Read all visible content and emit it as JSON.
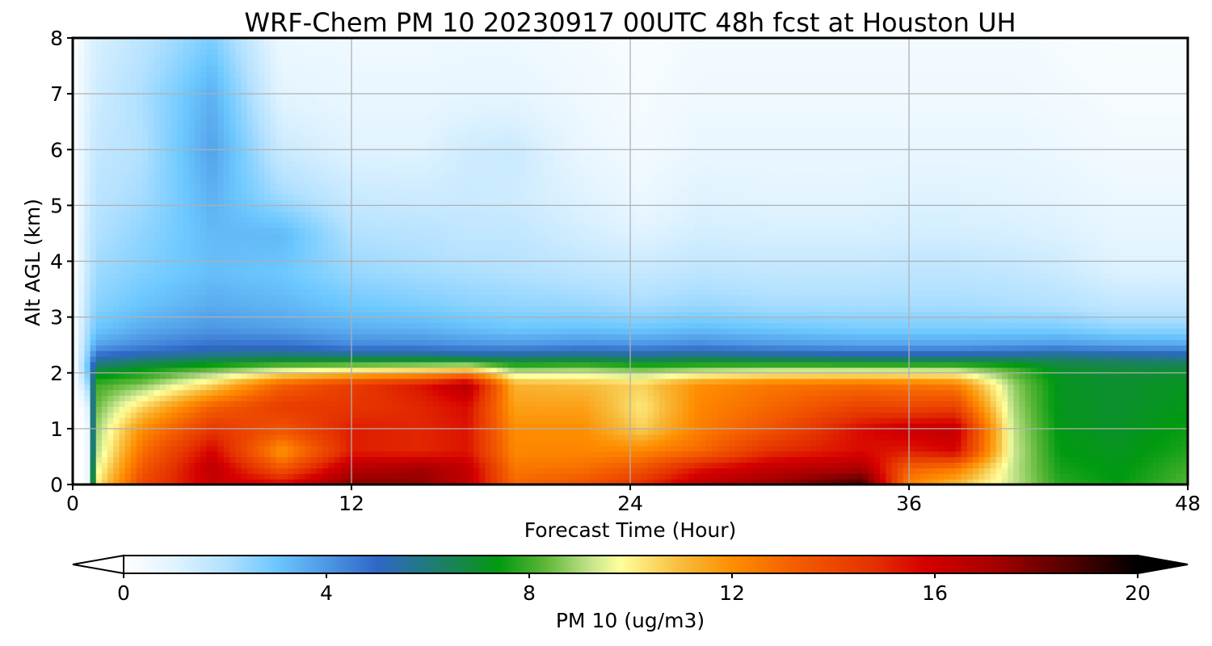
{
  "chart_data": {
    "type": "heatmap",
    "title": "WRF-Chem PM 10  20230917 00UTC 48h fcst at Houston UH",
    "xlabel": "Forecast Time (Hour)",
    "ylabel": "Alt AGL (km)",
    "xlim": [
      0,
      48
    ],
    "ylim": [
      0,
      8
    ],
    "xticks": [
      0,
      12,
      24,
      36,
      48
    ],
    "yticks": [
      0,
      1,
      2,
      3,
      4,
      5,
      6,
      7,
      8
    ],
    "grid": true,
    "z_variable": "PM 10  (ug/m3)",
    "colorbar": {
      "label": "PM 10  (ug/m3)",
      "orientation": "horizontal",
      "placement": "bottom",
      "range": [
        0,
        20
      ],
      "ticks": [
        0,
        4,
        8,
        12,
        16,
        20
      ],
      "extend": "both",
      "levels": [
        {
          "value": 0,
          "color": "#ffffff"
        },
        {
          "value": 1,
          "color": "#e0f3ff"
        },
        {
          "value": 2,
          "color": "#b3e1ff"
        },
        {
          "value": 3,
          "color": "#6cc8ff"
        },
        {
          "value": 5,
          "color": "#2f67c8"
        },
        {
          "value": 6.8,
          "color": "#138a3e"
        },
        {
          "value": 7.4,
          "color": "#009a10"
        },
        {
          "value": 8.3,
          "color": "#5bb637"
        },
        {
          "value": 9.2,
          "color": "#c4e38c"
        },
        {
          "value": 9.8,
          "color": "#ffff9c"
        },
        {
          "value": 11,
          "color": "#f7bb3a"
        },
        {
          "value": 12,
          "color": "#ff8e00"
        },
        {
          "value": 13.2,
          "color": "#f45f00"
        },
        {
          "value": 14.8,
          "color": "#e43000"
        },
        {
          "value": 15.8,
          "color": "#d60000"
        },
        {
          "value": 17.2,
          "color": "#a50000"
        },
        {
          "value": 18.8,
          "color": "#4b0000"
        },
        {
          "value": 20,
          "color": "#000000"
        }
      ]
    },
    "heights_km": [
      0,
      0.3,
      0.6,
      1.0,
      1.4,
      1.8,
      2.1,
      2.3,
      2.5,
      2.8,
      3.2,
      3.8,
      4.5,
      5.2,
      6.0,
      7.0,
      8.0
    ],
    "profiles": [
      {
        "hour": 0,
        "values": [
          0,
          0,
          0,
          0,
          0,
          0,
          0,
          0,
          0,
          0,
          0,
          0,
          0,
          0,
          0,
          0,
          0
        ]
      },
      {
        "hour": 0.6,
        "values": [
          0,
          0,
          0,
          0,
          0.5,
          1.8,
          2.8,
          2.5,
          2.2,
          2.0,
          1.8,
          1.5,
          1.4,
          1.2,
          1.1,
          1.0,
          0.8
        ]
      },
      {
        "hour": 1,
        "values": [
          10,
          9.5,
          9.0,
          8.8,
          8.4,
          8.0,
          6.5,
          5.0,
          3.8,
          3.0,
          2.6,
          2.3,
          2.0,
          1.8,
          1.6,
          1.4,
          1.2
        ]
      },
      {
        "hour": 3,
        "values": [
          14,
          13.4,
          12.8,
          12.0,
          10.5,
          8.6,
          7.2,
          5.5,
          4.3,
          3.6,
          3.1,
          2.7,
          2.5,
          2.2,
          2.0,
          2.1,
          1.8
        ]
      },
      {
        "hour": 6,
        "values": [
          16.2,
          16.5,
          15.8,
          14.6,
          13.2,
          10.5,
          8.0,
          6.0,
          4.8,
          4.0,
          3.6,
          3.2,
          3.3,
          3.5,
          3.8,
          3.5,
          2.8
        ]
      },
      {
        "hour": 9,
        "values": [
          15.8,
          13.4,
          11.8,
          13.6,
          14.4,
          13.2,
          8.8,
          6.2,
          4.8,
          3.8,
          3.4,
          3.0,
          3.3,
          2.2,
          1.5,
          0.9,
          0.6
        ]
      },
      {
        "hour": 12,
        "values": [
          17.8,
          16.7,
          15.2,
          15.2,
          14.6,
          14.4,
          9.2,
          6.0,
          4.3,
          3.5,
          3.0,
          2.4,
          2.0,
          1.5,
          1.0,
          0.7,
          0.5
        ]
      },
      {
        "hour": 15,
        "values": [
          17.6,
          17.2,
          15.0,
          15.0,
          15.0,
          15.4,
          9.5,
          6.0,
          4.3,
          3.4,
          2.8,
          2.2,
          1.9,
          1.4,
          1.0,
          0.7,
          0.5
        ]
      },
      {
        "hour": 17,
        "values": [
          16.4,
          16.4,
          15.4,
          15.4,
          15.6,
          16.8,
          9.8,
          5.8,
          4.1,
          3.2,
          2.6,
          2.1,
          1.7,
          1.5,
          1.4,
          0.8,
          0.5
        ]
      },
      {
        "hour": 19,
        "values": [
          13.0,
          12.6,
          12.2,
          12.0,
          11.6,
          11.2,
          8.4,
          5.8,
          4.0,
          3.0,
          2.5,
          2.0,
          1.7,
          1.4,
          1.5,
          0.8,
          0.5
        ]
      },
      {
        "hour": 22,
        "values": [
          13.6,
          12.8,
          12.2,
          12.0,
          11.6,
          11.0,
          8.6,
          6.0,
          4.2,
          3.1,
          2.4,
          1.8,
          1.3,
          1.0,
          0.7,
          0.5,
          0.4
        ]
      },
      {
        "hour": 24.5,
        "values": [
          14.8,
          13.6,
          12.2,
          10.6,
          10.2,
          10.6,
          8.2,
          5.8,
          4.1,
          3.0,
          2.2,
          1.6,
          1.0,
          0.6,
          0.4,
          0.3,
          0.2
        ]
      },
      {
        "hour": 27,
        "values": [
          16.6,
          15.4,
          13.0,
          12.4,
          12.2,
          12.0,
          8.4,
          6.0,
          4.3,
          3.2,
          2.4,
          1.8,
          1.3,
          1.0,
          0.7,
          0.5,
          0.4
        ]
      },
      {
        "hour": 30,
        "values": [
          17.4,
          16.4,
          14.8,
          13.6,
          13.0,
          12.6,
          8.6,
          5.8,
          4.0,
          3.0,
          2.2,
          1.7,
          1.2,
          0.9,
          0.7,
          0.5,
          0.4
        ]
      },
      {
        "hour": 34,
        "values": [
          19.0,
          17.0,
          15.6,
          15.6,
          14.2,
          12.8,
          8.6,
          5.6,
          3.8,
          2.8,
          2.2,
          1.7,
          1.2,
          0.9,
          0.7,
          0.5,
          0.4
        ]
      },
      {
        "hour": 36,
        "values": [
          12.2,
          13.2,
          15.2,
          16.2,
          14.0,
          12.6,
          8.6,
          5.6,
          3.8,
          2.8,
          2.2,
          1.8,
          1.3,
          1.0,
          0.7,
          0.5,
          0.4
        ]
      },
      {
        "hour": 38,
        "values": [
          11.0,
          12.6,
          15.8,
          16.4,
          14.2,
          12.4,
          8.6,
          5.6,
          3.8,
          2.8,
          2.2,
          1.8,
          1.3,
          1.0,
          0.7,
          0.5,
          0.4
        ]
      },
      {
        "hour": 40.5,
        "values": [
          9.2,
          9.2,
          9.3,
          9.2,
          9.0,
          8.8,
          8.0,
          5.8,
          3.9,
          2.8,
          2.1,
          1.7,
          1.2,
          0.9,
          0.7,
          0.5,
          0.4
        ]
      },
      {
        "hour": 42.5,
        "values": [
          7.8,
          7.6,
          7.4,
          7.3,
          7.2,
          7.2,
          7.0,
          6.0,
          4.0,
          2.8,
          2.0,
          1.5,
          1.1,
          0.8,
          0.6,
          0.4,
          0.3
        ]
      },
      {
        "hour": 45,
        "values": [
          7.4,
          7.3,
          7.2,
          7.1,
          7.0,
          7.0,
          6.8,
          5.8,
          3.8,
          2.5,
          1.7,
          1.1,
          0.8,
          0.6,
          0.4,
          0.3,
          0.2
        ]
      },
      {
        "hour": 48,
        "values": [
          8.2,
          8.0,
          7.7,
          7.5,
          7.3,
          7.2,
          6.8,
          5.6,
          3.7,
          2.5,
          1.7,
          1.1,
          0.8,
          0.6,
          0.4,
          0.3,
          0.2
        ]
      }
    ]
  }
}
